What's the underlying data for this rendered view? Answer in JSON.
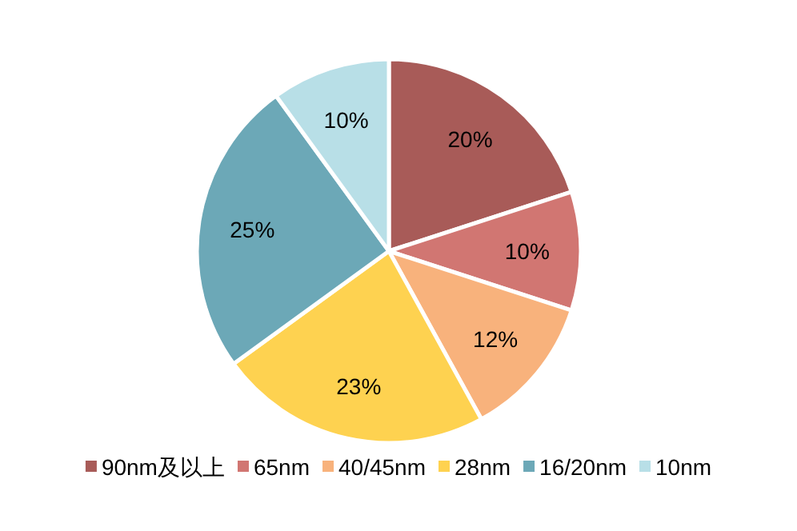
{
  "chart_data": {
    "type": "pie",
    "categories": [
      "90nm及以上",
      "65nm",
      "40/45nm",
      "28nm",
      "16/20nm",
      "10nm"
    ],
    "values": [
      20,
      10,
      12,
      23,
      25,
      10
    ],
    "value_labels": [
      "20%",
      "10%",
      "12%",
      "23%",
      "25%",
      "10%"
    ],
    "colors": [
      "#a85b58",
      "#d17672",
      "#f8b27c",
      "#fed250",
      "#6ca8b7",
      "#b8dfe7"
    ],
    "legend": "bottom"
  }
}
